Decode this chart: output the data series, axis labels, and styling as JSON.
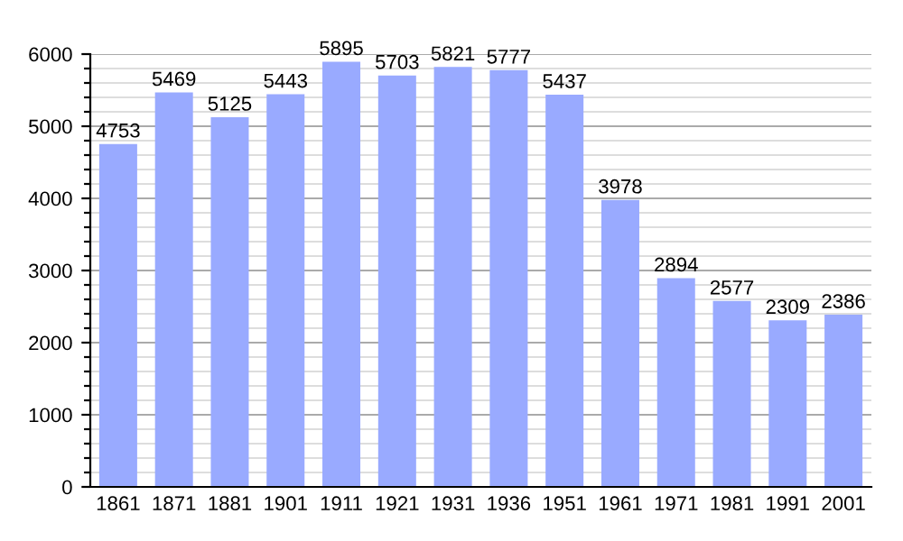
{
  "chart_data": {
    "type": "bar",
    "categories": [
      "1861",
      "1871",
      "1881",
      "1901",
      "1911",
      "1921",
      "1931",
      "1936",
      "1951",
      "1961",
      "1971",
      "1981",
      "1991",
      "2001"
    ],
    "values": [
      4753,
      5469,
      5125,
      5443,
      5895,
      5703,
      5821,
      5777,
      5437,
      3978,
      2894,
      2577,
      2309,
      2386
    ],
    "color": "#99aaff",
    "ylim": [
      0,
      6000
    ],
    "yticks": [
      0,
      {
        "value": 200,
        "label": null
      },
      {
        "value": 400,
        "label": null
      },
      {
        "value": 600,
        "label": null
      },
      {
        "value": 800,
        "label": null
      },
      1000,
      {
        "value": 1200,
        "label": null
      },
      {
        "value": 1400,
        "label": null
      },
      {
        "value": 1600,
        "label": null
      },
      {
        "value": 1800,
        "label": null
      },
      2000,
      {
        "value": 2200,
        "label": null
      },
      {
        "value": 2400,
        "label": null
      },
      {
        "value": 2600,
        "label": null
      },
      {
        "value": 2800,
        "label": null
      },
      3000,
      {
        "value": 3200,
        "label": null
      },
      {
        "value": 3400,
        "label": null
      },
      {
        "value": 3600,
        "label": null
      },
      {
        "value": 3800,
        "label": null
      },
      4000,
      {
        "value": 4200,
        "label": null
      },
      {
        "value": 4400,
        "label": null
      },
      {
        "value": 4600,
        "label": null
      },
      {
        "value": 4800,
        "label": null
      },
      5000,
      {
        "value": 5200,
        "label": null
      },
      {
        "value": 5400,
        "label": null
      },
      {
        "value": 5600,
        "label": null
      },
      {
        "value": 5800,
        "label": null
      },
      6000
    ],
    "grid": "y",
    "data_labels": true
  }
}
